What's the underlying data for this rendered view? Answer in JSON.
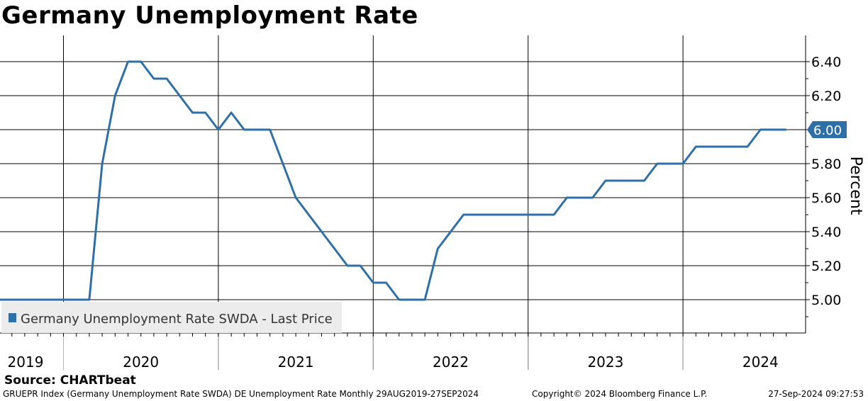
{
  "footer": {
    "source": "Source: CHARTbeat",
    "description": "GRUEPR Index (Germany Unemployment Rate SWDA) DE Unemployment Rate  Monthly 29AUG2019-27SEP2024",
    "copyright": "Copyright© 2024 Bloomberg Finance L.P.",
    "timestamp": "27-Sep-2024 09:27:53"
  },
  "colors": {
    "series": "#2e6fa7",
    "grid": "#000000",
    "legend_bg": "#ececec"
  },
  "chart_data": {
    "type": "line",
    "title": "Germany Unemployment Rate",
    "ylabel": "Percent",
    "xlabel": "",
    "ylim": [
      4.8,
      6.55
    ],
    "y_ticks": [
      5.0,
      5.2,
      5.4,
      5.6,
      5.8,
      6.0,
      6.2,
      6.4
    ],
    "y_tick_labels": [
      "5.00",
      "5.20",
      "5.40",
      "5.60",
      "5.80",
      "6.00",
      "6.20",
      "6.40"
    ],
    "x_range": [
      "2019-08",
      "2024-09"
    ],
    "x_year_labels": [
      "2019",
      "2020",
      "2021",
      "2022",
      "2023",
      "2024"
    ],
    "x_year_label_months": [
      "2019-07",
      "2020-07",
      "2021-07",
      "2022-07",
      "2023-07",
      "2024-07"
    ],
    "x_year_boundaries": [
      "2020-01",
      "2021-01",
      "2022-01",
      "2023-01",
      "2024-01"
    ],
    "grid": true,
    "legend_position": "bottom-left",
    "last_value_label": "6.00",
    "series": [
      {
        "name": "Germany Unemployment Rate SWDA - Last Price",
        "x": [
          "2019-08",
          "2019-09",
          "2019-10",
          "2019-11",
          "2019-12",
          "2020-01",
          "2020-02",
          "2020-03",
          "2020-04",
          "2020-05",
          "2020-06",
          "2020-07",
          "2020-08",
          "2020-09",
          "2020-10",
          "2020-11",
          "2020-12",
          "2021-01",
          "2021-02",
          "2021-03",
          "2021-04",
          "2021-05",
          "2021-06",
          "2021-07",
          "2021-08",
          "2021-09",
          "2021-10",
          "2021-11",
          "2021-12",
          "2022-01",
          "2022-02",
          "2022-03",
          "2022-04",
          "2022-05",
          "2022-06",
          "2022-07",
          "2022-08",
          "2022-09",
          "2022-10",
          "2022-11",
          "2022-12",
          "2023-01",
          "2023-02",
          "2023-03",
          "2023-04",
          "2023-05",
          "2023-06",
          "2023-07",
          "2023-08",
          "2023-09",
          "2023-10",
          "2023-11",
          "2023-12",
          "2024-01",
          "2024-02",
          "2024-03",
          "2024-04",
          "2024-05",
          "2024-06",
          "2024-07",
          "2024-08",
          "2024-09"
        ],
        "values": [
          5.0,
          5.0,
          5.0,
          5.0,
          5.0,
          5.0,
          5.0,
          5.0,
          5.8,
          6.2,
          6.4,
          6.4,
          6.3,
          6.3,
          6.2,
          6.1,
          6.1,
          6.0,
          6.1,
          6.0,
          6.0,
          6.0,
          5.8,
          5.6,
          5.5,
          5.4,
          5.3,
          5.2,
          5.2,
          5.1,
          5.1,
          5.0,
          5.0,
          5.0,
          5.3,
          5.4,
          5.5,
          5.5,
          5.5,
          5.5,
          5.5,
          5.5,
          5.5,
          5.5,
          5.6,
          5.6,
          5.6,
          5.7,
          5.7,
          5.7,
          5.7,
          5.8,
          5.8,
          5.8,
          5.9,
          5.9,
          5.9,
          5.9,
          5.9,
          6.0,
          6.0,
          6.0
        ]
      }
    ]
  }
}
